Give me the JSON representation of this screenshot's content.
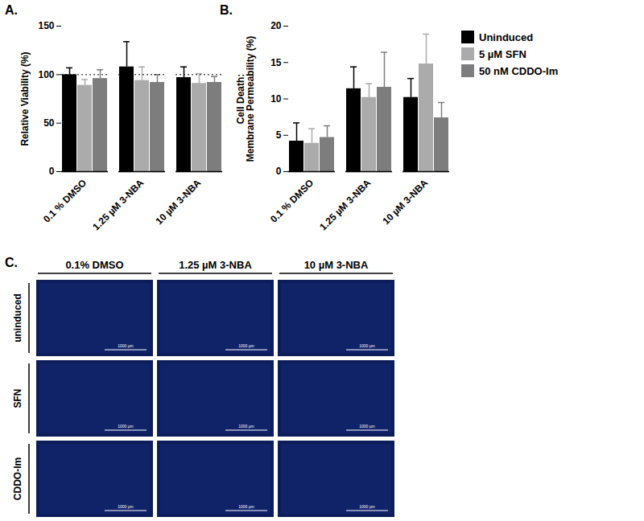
{
  "chart_data": [
    {
      "type": "bar",
      "title": "A.",
      "categories": [
        "0.1 % DMSO",
        "1.25 µM 3-NBA",
        "10 µM 3-NBA"
      ],
      "ylabel": "Relative Viability (%)",
      "ylim": [
        0,
        150
      ],
      "yticks": [
        0,
        50,
        100,
        150
      ],
      "hline": 100,
      "series": [
        {
          "name": "Uninduced",
          "color": "#000000",
          "values": [
            100,
            108,
            97
          ],
          "errors": [
            7,
            26,
            11
          ]
        },
        {
          "name": "5 µM SFN",
          "color": "#ababab",
          "values": [
            89,
            94,
            91
          ],
          "errors": [
            6,
            14,
            10
          ]
        },
        {
          "name": "50 nM CDDO-Im",
          "color": "#7d7d7d",
          "values": [
            96,
            92,
            92
          ],
          "errors": [
            9,
            8,
            6
          ]
        }
      ]
    },
    {
      "type": "bar",
      "title": "B.",
      "categories": [
        "0.1 % DMSO",
        "1.25 µM 3-NBA",
        "10 µM 3-NBA"
      ],
      "ylabel": "Cell Death:\nMembrane Permeability (%)",
      "ylim": [
        0,
        20
      ],
      "yticks": [
        0,
        5,
        10,
        15,
        20
      ],
      "legend": "right",
      "series": [
        {
          "name": "Uninduced",
          "color": "#000000",
          "values": [
            4.2,
            11.4,
            10.2
          ],
          "errors": [
            2.5,
            3.0,
            2.6
          ]
        },
        {
          "name": "5 µM SFN",
          "color": "#ababab",
          "values": [
            3.9,
            10.2,
            14.8
          ],
          "errors": [
            2.0,
            1.9,
            4.1
          ]
        },
        {
          "name": "50 nM CDDO-Im",
          "color": "#7d7d7d",
          "values": [
            4.7,
            11.6,
            7.4
          ],
          "errors": [
            1.6,
            4.8,
            2.1
          ]
        }
      ]
    }
  ],
  "image_grid": {
    "title": "C.",
    "columns": [
      "0.1% DMSO",
      "1.25 µM 3-NBA",
      "10 µM 3-NBA"
    ],
    "rows": [
      "uninduced",
      "SFN",
      "CDDO-Im"
    ],
    "scale_bar": "1000 µm"
  }
}
